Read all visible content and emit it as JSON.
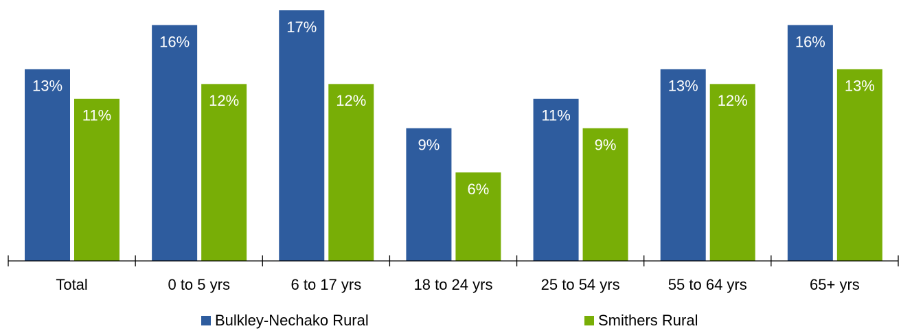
{
  "chart_data": {
    "type": "bar",
    "categories": [
      "Total",
      "0 to 5 yrs",
      "6 to 17 yrs",
      "18 to 24 yrs",
      "25 to 54 yrs",
      "55 to 64 yrs",
      "65+ yrs"
    ],
    "series": [
      {
        "name": "Bulkley-Nechako Rural",
        "color": "#2e5c9e",
        "values": [
          13,
          16,
          17,
          9,
          11,
          13,
          16
        ],
        "value_labels": [
          "13%",
          "16%",
          "17%",
          "9%",
          "11%",
          "13%",
          "16%"
        ]
      },
      {
        "name": "Smithers Rural",
        "color": "#78ae06",
        "values": [
          11,
          12,
          12,
          6,
          9,
          12,
          13
        ],
        "value_labels": [
          "11%",
          "12%",
          "12%",
          "6%",
          "9%",
          "12%",
          "13%"
        ]
      }
    ],
    "ylim": [
      0,
      17
    ],
    "legend": "bottom"
  }
}
